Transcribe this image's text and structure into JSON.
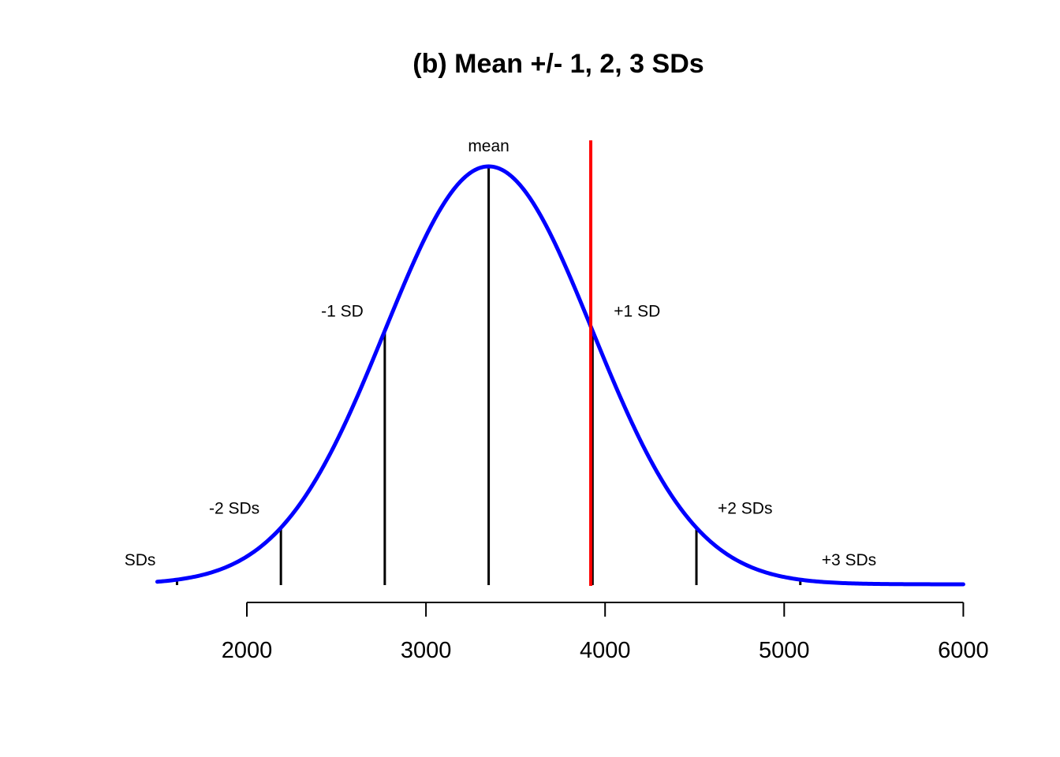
{
  "chart_data": {
    "type": "line",
    "title": "(b) Mean +/- 1, 2, 3 SDs",
    "xlabel": "",
    "ylabel": "",
    "xlim": [
      1500,
      6000
    ],
    "x_ticks": [
      2000,
      3000,
      4000,
      5000,
      6000
    ],
    "x_tick_labels": [
      "2000",
      "3000",
      "4000",
      "5000",
      "6000"
    ],
    "grid": false,
    "legend": "none",
    "series": [
      {
        "mean": 3350,
        "sd": 580,
        "color": "#0000ff"
      }
    ],
    "markers": [
      {
        "label": "SDs",
        "value": 1610
      },
      {
        "label": "-2 SDs",
        "value": 2190
      },
      {
        "label": "-1 SD",
        "value": 2770
      },
      {
        "label": "mean",
        "value": 3350
      },
      {
        "label": "+1 SD",
        "value": 3930
      },
      {
        "label": "+2 SDs",
        "value": 4510
      },
      {
        "label": "+3 SDs",
        "value": 5090
      }
    ],
    "reference_line": {
      "value": 3920,
      "color": "#ff0000"
    }
  }
}
